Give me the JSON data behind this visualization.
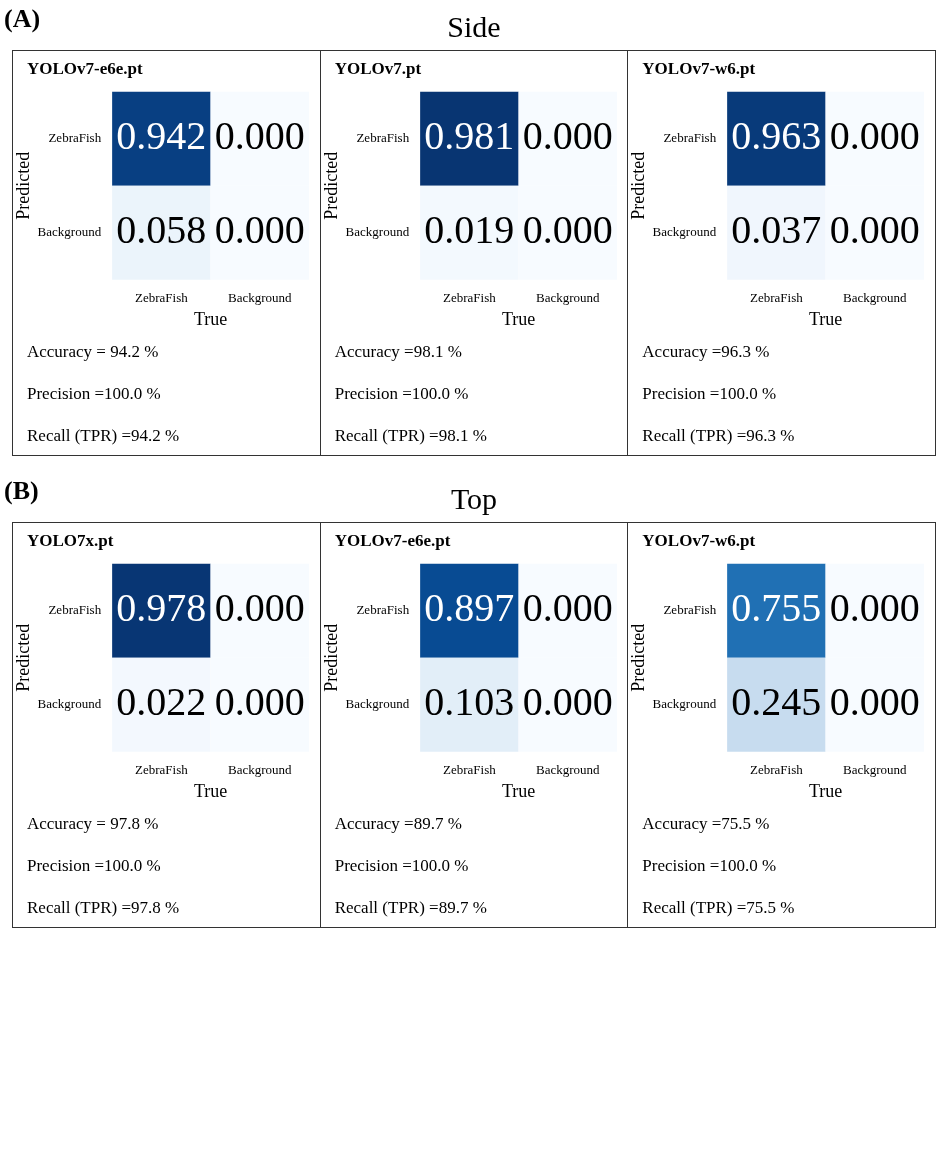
{
  "chart_data": [
    {
      "type": "heatmap",
      "title": "YOLOv7-e6e.pt",
      "xlabel": "True",
      "ylabel": "Predicted",
      "categories": [
        "ZebraFish",
        "Background"
      ],
      "y_categories": [
        "ZebraFish",
        "Background"
      ],
      "cells": [
        [
          0.942,
          0.0
        ],
        [
          0.058,
          0.0
        ]
      ],
      "cell_labels": [
        [
          "0.942",
          "0.000"
        ],
        [
          "0.058",
          "0.000"
        ]
      ],
      "data_labels": true,
      "annotations": [
        "(A)",
        "Side",
        "Accuracy = 94.2 %",
        "Precision =100.0 %",
        "Recall (TPR) =94.2 %"
      ]
    },
    {
      "type": "heatmap",
      "title": "YOLOv7.pt",
      "xlabel": "True",
      "ylabel": "Predicted",
      "categories": [
        "ZebraFish",
        "Background"
      ],
      "y_categories": [
        "ZebraFish",
        "Background"
      ],
      "cells": [
        [
          0.981,
          0.0
        ],
        [
          0.019,
          0.0
        ]
      ],
      "cell_labels": [
        [
          "0.981",
          "0.000"
        ],
        [
          "0.019",
          "0.000"
        ]
      ],
      "data_labels": true,
      "annotations": [
        "Accuracy =98.1 %",
        "Precision =100.0 %",
        "Recall (TPR) =98.1 %"
      ]
    },
    {
      "type": "heatmap",
      "title": "YOLOv7-w6.pt",
      "xlabel": "True",
      "ylabel": "Predicted",
      "categories": [
        "ZebraFish",
        "Background"
      ],
      "y_categories": [
        "ZebraFish",
        "Background"
      ],
      "cells": [
        [
          0.963,
          0.0
        ],
        [
          0.037,
          0.0
        ]
      ],
      "cell_labels": [
        [
          "0.963",
          "0.000"
        ],
        [
          "0.037",
          "0.000"
        ]
      ],
      "data_labels": true,
      "annotations": [
        "Accuracy =96.3 %",
        "Precision =100.0 %",
        "Recall (TPR) =96.3 %"
      ]
    },
    {
      "type": "heatmap",
      "title": "YOLO7x.pt",
      "xlabel": "True",
      "ylabel": "Predicted",
      "categories": [
        "ZebraFish",
        "Background"
      ],
      "y_categories": [
        "ZebraFish",
        "Background"
      ],
      "cells": [
        [
          0.978,
          0.0
        ],
        [
          0.022,
          0.0
        ]
      ],
      "cell_labels": [
        [
          "0.978",
          "0.000"
        ],
        [
          "0.022",
          "0.000"
        ]
      ],
      "data_labels": true,
      "annotations": [
        "(B)",
        "Top",
        "Accuracy = 97.8 %",
        "Precision =100.0 %",
        "Recall (TPR) =97.8 %"
      ]
    },
    {
      "type": "heatmap",
      "title": "YOLOv7-e6e.pt",
      "xlabel": "True",
      "ylabel": "Predicted",
      "categories": [
        "ZebraFish",
        "Background"
      ],
      "y_categories": [
        "ZebraFish",
        "Background"
      ],
      "cells": [
        [
          0.897,
          0.0
        ],
        [
          0.103,
          0.0
        ]
      ],
      "cell_labels": [
        [
          "0.897",
          "0.000"
        ],
        [
          "0.103",
          "0.000"
        ]
      ],
      "data_labels": true,
      "annotations": [
        "Accuracy =89.7 %",
        "Precision =100.0 %",
        "Recall (TPR) =89.7 %"
      ]
    },
    {
      "type": "heatmap",
      "title": "YOLOv7-w6.pt",
      "xlabel": "True",
      "ylabel": "Predicted",
      "categories": [
        "ZebraFish",
        "Background"
      ],
      "y_categories": [
        "ZebraFish",
        "Background"
      ],
      "cells": [
        [
          0.755,
          0.0
        ],
        [
          0.245,
          0.0
        ]
      ],
      "cell_labels": [
        [
          "0.755",
          "0.000"
        ],
        [
          "0.245",
          "0.000"
        ]
      ],
      "data_labels": true,
      "annotations": [
        "Accuracy =75.5 %",
        "Precision =100.0 %",
        "Recall (TPR) =75.5 %"
      ]
    }
  ]
}
